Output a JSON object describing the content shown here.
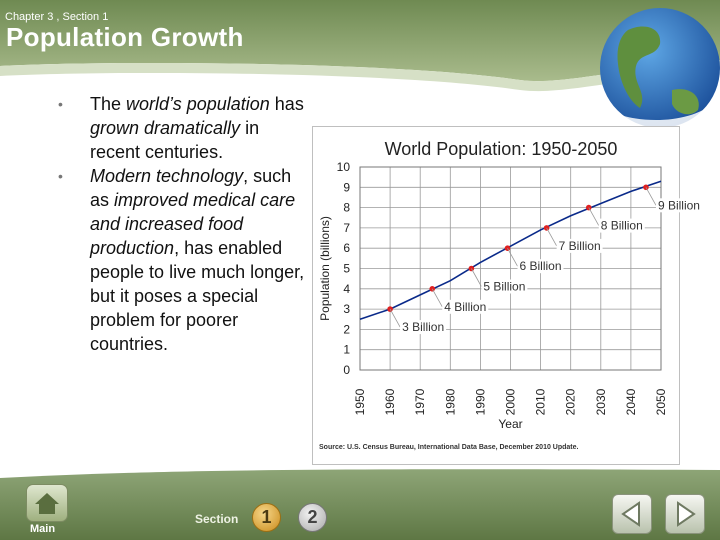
{
  "header": {
    "chapter": "Chapter 3 , Section 1",
    "title": "Population Growth"
  },
  "bullets": [
    {
      "segments": [
        {
          "t": "The ",
          "i": false
        },
        {
          "t": "world’s population",
          "i": true
        },
        {
          "t": " has ",
          "i": false
        },
        {
          "t": "grown dramatically",
          "i": true
        },
        {
          "t": " in recent centuries.",
          "i": false
        }
      ]
    },
    {
      "segments": [
        {
          "t": "Modern technology",
          "i": true
        },
        {
          "t": ", such as ",
          "i": false
        },
        {
          "t": "improved medical care and increased food production",
          "i": true
        },
        {
          "t": ", has enabled people to live much longer, but it poses a special problem for poorer countries.",
          "i": false
        }
      ]
    }
  ],
  "chart_data": {
    "type": "line",
    "title": "World Population: 1950-2050",
    "xlabel": "Year",
    "ylabel": "Population (billions)",
    "x_ticks": [
      "1950",
      "1960",
      "1970",
      "1980",
      "1990",
      "2000",
      "2010",
      "2020",
      "2030",
      "2040",
      "2050"
    ],
    "y_ticks": [
      "0",
      "1",
      "2",
      "3",
      "4",
      "5",
      "6",
      "7",
      "8",
      "9",
      "10"
    ],
    "xlim": [
      1950,
      2050
    ],
    "ylim": [
      0,
      10
    ],
    "series": [
      {
        "name": "World population",
        "x": [
          1950,
          1960,
          1970,
          1980,
          1990,
          2000,
          2010,
          2020,
          2030,
          2040,
          2050
        ],
        "y": [
          2.5,
          3.0,
          3.7,
          4.4,
          5.3,
          6.1,
          6.9,
          7.6,
          8.2,
          8.8,
          9.3
        ]
      }
    ],
    "milestones": [
      {
        "year": 1960,
        "value": 3.0,
        "label": "3 Billion"
      },
      {
        "year": 1974,
        "value": 4.0,
        "label": "4 Billion"
      },
      {
        "year": 1987,
        "value": 5.0,
        "label": "5 Billion"
      },
      {
        "year": 1999,
        "value": 6.0,
        "label": "6 Billion"
      },
      {
        "year": 2012,
        "value": 7.0,
        "label": "7 Billion"
      },
      {
        "year": 2026,
        "value": 8.0,
        "label": "8 Billion"
      },
      {
        "year": 2045,
        "value": 9.0,
        "label": "9 Billion"
      }
    ],
    "source": "Source: U.S. Census Bureau, International Data Base, December 2010 Update.",
    "grid": true,
    "colors": {
      "line": "#0a2a8a",
      "marker": "#e02020",
      "grid": "#9a9a9a"
    }
  },
  "nav": {
    "main_label": "Main",
    "section_label": "Section",
    "section_1": "1",
    "section_2": "2"
  },
  "theme": {
    "header_green": "#8aa06a",
    "dark_green": "#5f7a44",
    "light_green": "#dfe7cf"
  }
}
